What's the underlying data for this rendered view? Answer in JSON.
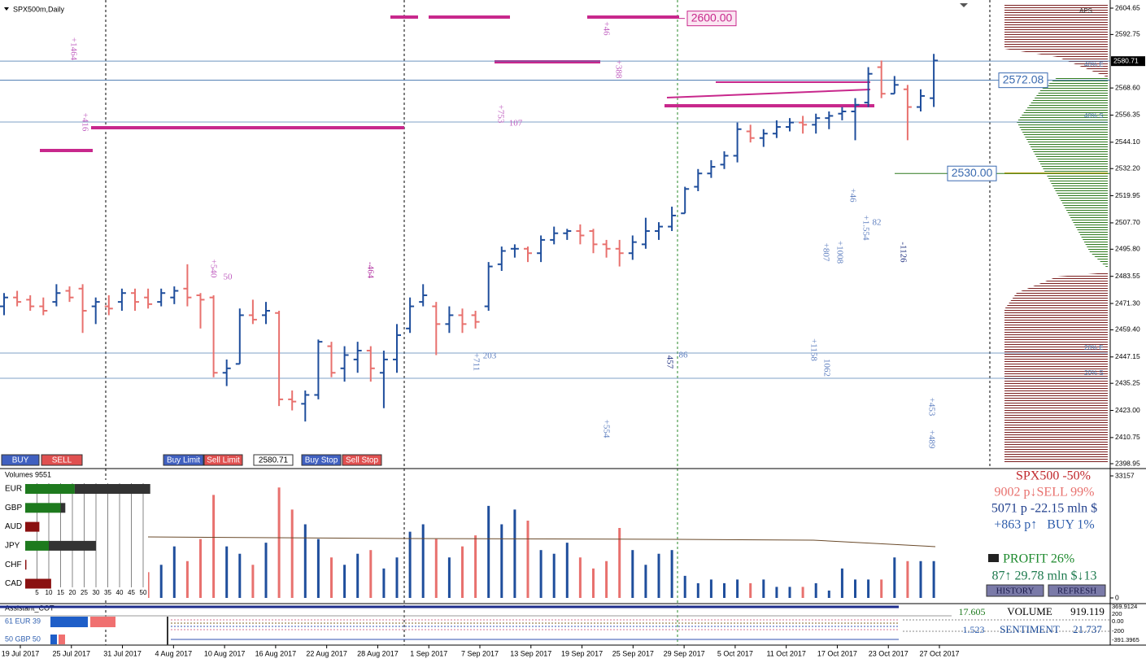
{
  "chart_data": {
    "type": "ohlc",
    "title": "SPX500m,Daily",
    "ylim": [
      2398.95,
      2604.65
    ],
    "yticks": [
      {
        "value": 2604.65,
        "label": "2604.65"
      },
      {
        "value": 2592.75,
        "label": "2592.75"
      },
      {
        "value": 2568.6,
        "label": "2568.60"
      },
      {
        "value": 2556.35,
        "label": "2556.35"
      },
      {
        "value": 2544.1,
        "label": "2544.10"
      },
      {
        "value": 2532.2,
        "label": "2532.20"
      },
      {
        "value": 2519.95,
        "label": "2519.95"
      },
      {
        "value": 2507.7,
        "label": "2507.70"
      },
      {
        "value": 2495.8,
        "label": "2495.80"
      },
      {
        "value": 2483.55,
        "label": "2483.55"
      },
      {
        "value": 2471.3,
        "label": "2471.30"
      },
      {
        "value": 2459.4,
        "label": "2459.40"
      },
      {
        "value": 2447.15,
        "label": "2447.15"
      },
      {
        "value": 2435.25,
        "label": "2435.25"
      },
      {
        "value": 2423.0,
        "label": "2423.00"
      },
      {
        "value": 2410.75,
        "label": "2410.75"
      },
      {
        "value": 2398.95,
        "label": "2398.95"
      }
    ],
    "current_price": {
      "value": 2580.71,
      "label": "2580.71"
    },
    "levels": [
      {
        "value": 2600,
        "label": "2600.00"
      },
      {
        "value": 2572.08,
        "label": "2572.08"
      },
      {
        "value": 2530,
        "label": "2530.00"
      }
    ],
    "x_labels": [
      "19 Jul 2017",
      "25 Jul 2017",
      "31 Jul 2017",
      "4 Aug 2017",
      "10 Aug 2017",
      "16 Aug 2017",
      "22 Aug 2017",
      "28 Aug 2017",
      "1 Sep 2017",
      "7 Sep 2017",
      "13 Sep 2017",
      "19 Sep 2017",
      "25 Sep 2017",
      "29 Sep 2017",
      "5 Oct 2017",
      "11 Oct 2017",
      "17 Oct 2017",
      "23 Oct 2017",
      "27 Oct 2017"
    ],
    "up_color": "#1f4e9c",
    "down_color": "#e8716e",
    "ohlc": [
      [
        2470,
        2476,
        2466,
        2474
      ],
      [
        2474,
        2477,
        2470,
        2472
      ],
      [
        2473,
        2475,
        2468,
        2470
      ],
      [
        2470,
        2474,
        2466,
        2468
      ],
      [
        2472,
        2480,
        2470,
        2476
      ],
      [
        2477,
        2479,
        2472,
        2474
      ],
      [
        2478,
        2480,
        2458,
        2468
      ],
      [
        2470,
        2474,
        2462,
        2472
      ],
      [
        2470,
        2475,
        2466,
        2469
      ],
      [
        2472,
        2478,
        2468,
        2476
      ],
      [
        2476,
        2478,
        2468,
        2472
      ],
      [
        2474,
        2478,
        2469,
        2471
      ],
      [
        2472,
        2478,
        2470,
        2476
      ],
      [
        2474,
        2479,
        2471,
        2477
      ],
      [
        2478,
        2489,
        2470,
        2474
      ],
      [
        2475,
        2476,
        2460,
        2473
      ],
      [
        2474,
        2475,
        2438,
        2440
      ],
      [
        2440,
        2446,
        2434,
        2442
      ],
      [
        2444,
        2469,
        2444,
        2466
      ],
      [
        2466,
        2473,
        2462,
        2464
      ],
      [
        2466,
        2472,
        2462,
        2468
      ],
      [
        2467,
        2468,
        2425,
        2428
      ],
      [
        2428,
        2432,
        2423,
        2427
      ],
      [
        2426,
        2432,
        2418,
        2430
      ],
      [
        2430,
        2455,
        2428,
        2454
      ],
      [
        2452,
        2454,
        2438,
        2440
      ],
      [
        2442,
        2452,
        2436,
        2448
      ],
      [
        2446,
        2454,
        2440,
        2450
      ],
      [
        2450,
        2452,
        2436,
        2442
      ],
      [
        2440,
        2450,
        2424,
        2446
      ],
      [
        2446,
        2462,
        2440,
        2457
      ],
      [
        2460,
        2474,
        2458,
        2470
      ],
      [
        2472,
        2480,
        2470,
        2475
      ],
      [
        2470,
        2472,
        2448,
        2462
      ],
      [
        2462,
        2470,
        2458,
        2466
      ],
      [
        2466,
        2469,
        2458,
        2462
      ],
      [
        2466,
        2468,
        2460,
        2463
      ],
      [
        2470,
        2490,
        2468,
        2488
      ],
      [
        2489,
        2497,
        2486,
        2495
      ],
      [
        2496,
        2498,
        2492,
        2496
      ],
      [
        2496,
        2497,
        2490,
        2494
      ],
      [
        2494,
        2502,
        2490,
        2500
      ],
      [
        2500,
        2506,
        2498,
        2503
      ],
      [
        2503,
        2505,
        2500,
        2504
      ],
      [
        2504,
        2507,
        2498,
        2502
      ],
      [
        2504,
        2505,
        2494,
        2498
      ],
      [
        2498,
        2500,
        2492,
        2496
      ],
      [
        2496,
        2500,
        2488,
        2494
      ],
      [
        2494,
        2502,
        2491,
        2499
      ],
      [
        2498,
        2510,
        2496,
        2504
      ],
      [
        2504,
        2508,
        2500,
        2506
      ],
      [
        2506,
        2515,
        2504,
        2511
      ],
      [
        2512,
        2524,
        2512,
        2523
      ],
      [
        2524,
        2532,
        2522,
        2530
      ],
      [
        2530,
        2536,
        2528,
        2533
      ],
      [
        2534,
        2540,
        2532,
        2538
      ],
      [
        2538,
        2553,
        2535,
        2550
      ],
      [
        2549,
        2552,
        2544,
        2546
      ],
      [
        2546,
        2550,
        2542,
        2548
      ],
      [
        2548,
        2554,
        2546,
        2551
      ],
      [
        2551,
        2555,
        2549,
        2553
      ],
      [
        2553,
        2556,
        2548,
        2552
      ],
      [
        2552,
        2557,
        2548,
        2555
      ],
      [
        2555,
        2558,
        2550,
        2556
      ],
      [
        2557,
        2560,
        2554,
        2558
      ],
      [
        2558,
        2564,
        2545,
        2561
      ],
      [
        2562,
        2578,
        2560,
        2575
      ],
      [
        2578,
        2581,
        2564,
        2566
      ],
      [
        2566,
        2574,
        2566,
        2570
      ],
      [
        2568,
        2570,
        2545,
        2560
      ],
      [
        2560,
        2568,
        2558,
        2565
      ],
      [
        2564,
        2584,
        2560,
        2581
      ]
    ],
    "annotations": [
      "+1464",
      "+416",
      "+753",
      "107",
      "+388",
      "+46",
      "+540",
      "50",
      "-464",
      "+711",
      "203",
      "+554",
      "457",
      "86",
      "+807",
      "+1008",
      "+1.554",
      "82",
      "+46",
      "-1126",
      "+1158",
      "1062",
      "+453",
      "+489"
    ],
    "buttons": [
      "BUY",
      "SELL",
      "Buy Limit",
      "Sell Limit",
      "2580.71",
      "Buy Stop",
      "Sell Stop"
    ],
    "zone_labels": [
      "APS",
      "40% E",
      "40% S",
      "20% E",
      "20% S"
    ],
    "volume": {
      "title": "Volumes 9551",
      "ylim": [
        0,
        33157
      ],
      "yticks": [
        33157,
        0
      ],
      "values": [
        9000,
        12000,
        8000,
        15000,
        10000,
        7000,
        18000,
        9000,
        8000,
        11000,
        10000,
        7000,
        9000,
        14000,
        10000,
        16000,
        28000,
        14000,
        12000,
        9000,
        15000,
        30000,
        24000,
        20000,
        16000,
        11000,
        9000,
        12000,
        13000,
        8000,
        11000,
        18000,
        20000,
        16000,
        11000,
        14000,
        17000,
        25000,
        20000,
        24000,
        21000,
        13000,
        12000,
        15000,
        11000,
        8000,
        10000,
        19000,
        13000,
        9000,
        12000,
        13000,
        6000,
        4000,
        5000,
        4000,
        5000,
        4000,
        5000,
        3000,
        3000,
        3000,
        4000,
        2000,
        8000,
        5000,
        5000,
        5000,
        11000,
        10000,
        10000,
        10000
      ],
      "currencies": [
        "EUR",
        "GBP",
        "AUD",
        "JPY",
        "CHF",
        "CAD"
      ],
      "series": [
        {
          "name": "long",
          "color": "#1e7a1e",
          "values": [
            21,
            15,
            6,
            10,
            0.5,
            11
          ]
        },
        {
          "name": "short",
          "color": "#333333",
          "values": [
            32,
            2,
            0,
            20,
            0,
            0
          ]
        }
      ],
      "xticks": [
        5,
        10,
        15,
        20,
        25,
        30,
        35,
        40,
        45,
        50
      ]
    },
    "stats": [
      "SPX500 -50%",
      "9002 p↓SELL 99%",
      "5071 p -22.15 mln $",
      "+863 p↑   BUY 1%",
      "PROFIT 26%",
      "87↑ 29.78 mln $↓13",
      "HISTORY",
      "REFRESH"
    ],
    "cot": {
      "title": "Assistant_COT",
      "rows": [
        "61 EUR 39",
        "50 GBP 50"
      ],
      "cells": [
        "17.605",
        "VOLUME",
        "919.119",
        "1.523",
        "SENTIMENT",
        "21.737"
      ],
      "yticks": [
        "369.9124",
        "200",
        "0.00",
        "-200",
        "-391.3965"
      ]
    }
  }
}
